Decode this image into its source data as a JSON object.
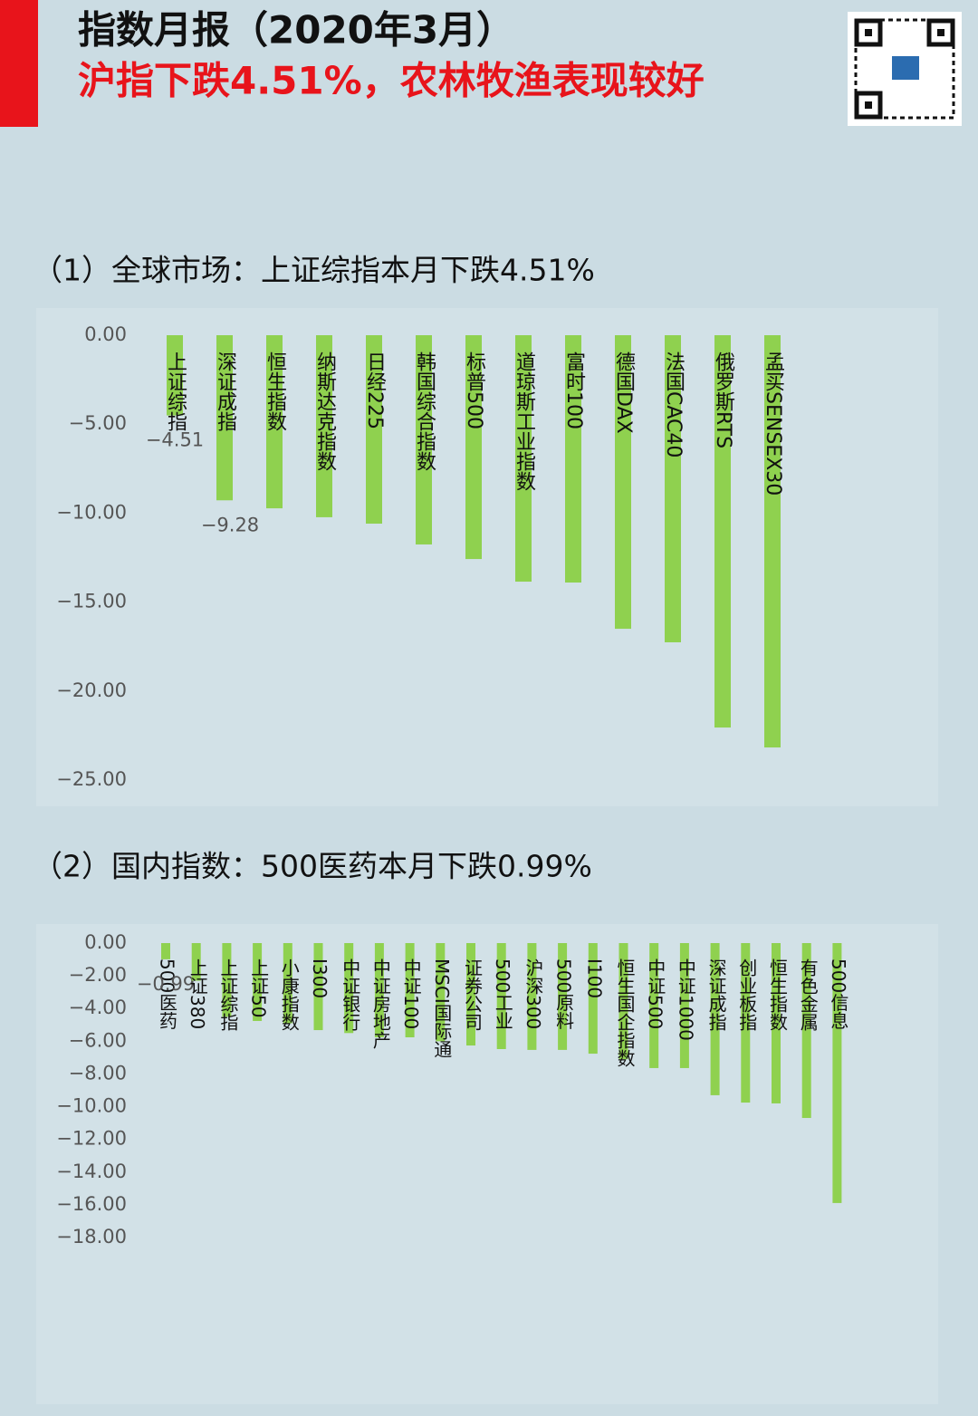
{
  "header": {
    "title": "指数月报（2020年3月）",
    "subtitle": "沪指下跌4.51%，农林牧渔表现较好"
  },
  "chart_data": [
    {
      "type": "bar",
      "title": "（1）全球市场：上证综指本月下跌4.51%",
      "categories": [
        "上证综指",
        "深证成指",
        "恒生指数",
        "纳斯达克指数",
        "日经225",
        "韩国综合指数",
        "标普500",
        "道琼斯工业指数",
        "富时100",
        "德国DAX",
        "法国CAC40",
        "俄罗斯RTS",
        "孟买SENSEX30"
      ],
      "values": [
        -4.51,
        -9.28,
        -9.73,
        -10.23,
        -10.59,
        -11.76,
        -12.58,
        -13.85,
        -13.9,
        -16.5,
        -17.26,
        -22.05,
        -23.17
      ],
      "value_labels": [
        "−4.51",
        "−9.28",
        null,
        null,
        null,
        null,
        null,
        null,
        null,
        null,
        null,
        null,
        null
      ],
      "color": "#8fd14f",
      "ylim": [
        -25,
        0
      ],
      "yticks": [
        {
          "value": 0,
          "label": "0.00"
        },
        {
          "value": -5,
          "label": "−5.00"
        },
        {
          "value": -10,
          "label": "−10.00"
        },
        {
          "value": -15,
          "label": "−15.00"
        },
        {
          "value": -20,
          "label": "−20.00"
        },
        {
          "value": -25,
          "label": "−25.00"
        }
      ],
      "grid": false
    },
    {
      "type": "bar",
      "title": "（2）国内指数：500医药本月下跌0.99%",
      "categories": [
        "500医药",
        "上证380",
        "上证综指",
        "上证50",
        "小康指数",
        "I300",
        "中证银行",
        "中证房地产",
        "中证100",
        "MSCI国际通",
        "证券公司",
        "500工业",
        "沪深300",
        "500原料",
        "I100",
        "恒生国企指数",
        "中证500",
        "中证1000",
        "深证成指",
        "创业板指",
        "恒生指数",
        "有色金属",
        "500信息"
      ],
      "values": [
        -0.99,
        -2.3,
        -4.5,
        -4.76,
        -4.9,
        -5.32,
        -5.5,
        -5.76,
        -5.76,
        -6.0,
        -6.26,
        -6.48,
        -6.53,
        -6.53,
        -6.76,
        -7.1,
        -7.64,
        -7.64,
        -9.3,
        -9.75,
        -9.8,
        -10.69,
        -15.89
      ],
      "value_labels": [
        "−0.99",
        null,
        null,
        null,
        null,
        null,
        null,
        null,
        null,
        null,
        null,
        null,
        null,
        null,
        null,
        null,
        null,
        null,
        null,
        null,
        null,
        null,
        null
      ],
      "color": "#8fd14f",
      "ylim": [
        -18,
        0
      ],
      "yticks": [
        {
          "value": 0,
          "label": "0.00"
        },
        {
          "value": -2,
          "label": "−2.00"
        },
        {
          "value": -4,
          "label": "−4.00"
        },
        {
          "value": -6,
          "label": "−6.00"
        },
        {
          "value": -8,
          "label": "−8.00"
        },
        {
          "value": -10,
          "label": "−10.00"
        },
        {
          "value": -12,
          "label": "−12.00"
        },
        {
          "value": -14,
          "label": "−14.00"
        },
        {
          "value": -16,
          "label": "−16.00"
        },
        {
          "value": -18,
          "label": "−18.00"
        }
      ],
      "grid": false
    }
  ]
}
